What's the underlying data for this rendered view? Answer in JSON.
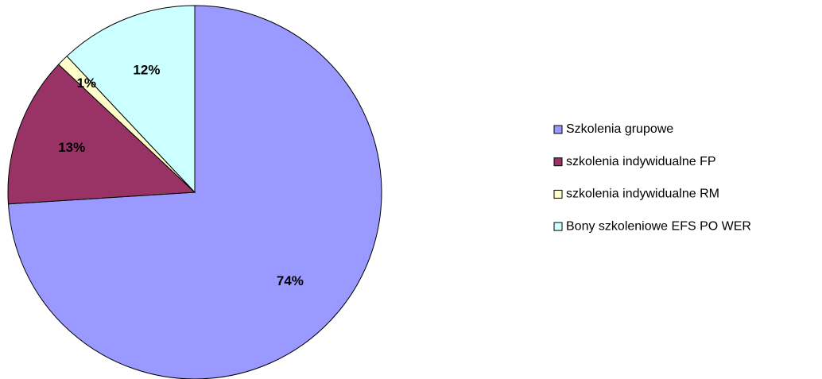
{
  "chart_data": {
    "type": "pie",
    "categories": [
      "Szkolenia grupowe",
      "szkolenia indywidualne FP",
      "szkolenia indywidualne RM",
      "Bony szkoleniowe EFS PO WER"
    ],
    "values": [
      74,
      13,
      1,
      12
    ],
    "value_labels": [
      "74%",
      "13%",
      "1%",
      "12%"
    ],
    "colors": [
      "#9999ff",
      "#993366",
      "#ffffcc",
      "#ccffff"
    ],
    "legend": "right"
  }
}
